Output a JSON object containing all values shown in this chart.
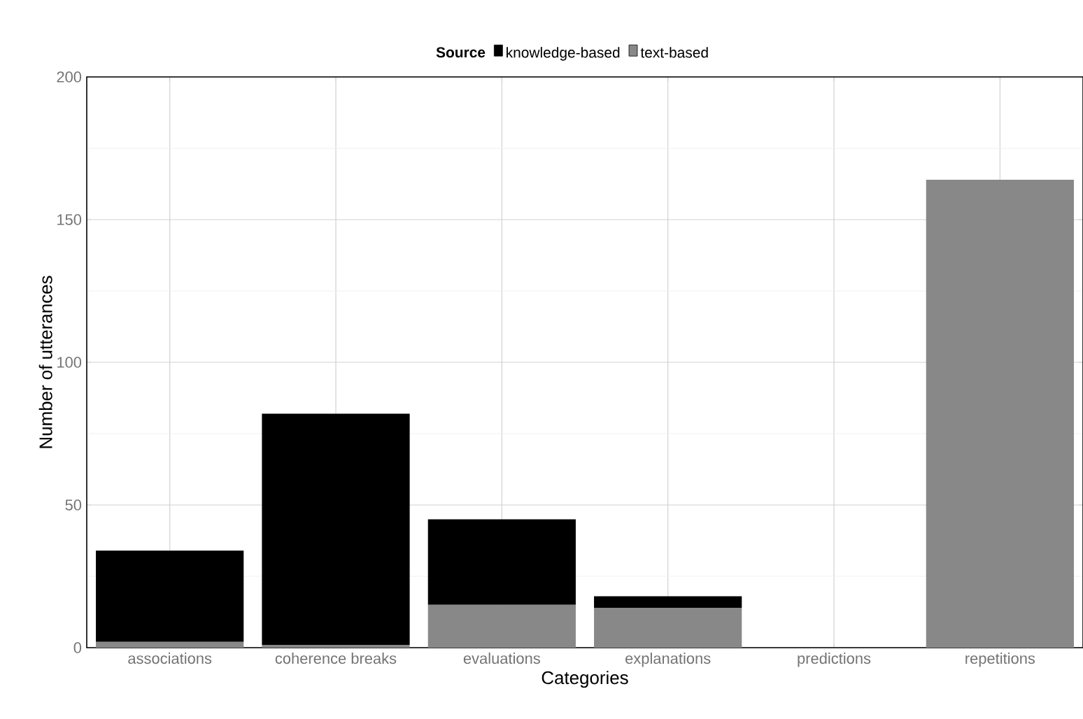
{
  "chart_data": {
    "type": "bar",
    "stacked": true,
    "xlabel": "Categories",
    "ylabel": "Number of utterances",
    "legend_title": "Source",
    "legend": "top",
    "categories": [
      "associations",
      "coherence breaks",
      "evaluations",
      "explanations",
      "predictions",
      "repetitions"
    ],
    "series": [
      {
        "name": "text-based",
        "color": "#888888",
        "values": [
          2,
          1,
          15,
          14,
          0,
          164
        ]
      },
      {
        "name": "knowledge-based",
        "color": "#000000",
        "values": [
          32,
          81,
          30,
          4,
          0,
          0
        ]
      }
    ],
    "ylim": [
      0,
      200
    ],
    "yticks": [
      0,
      50,
      100,
      150,
      200
    ],
    "grid": true
  }
}
